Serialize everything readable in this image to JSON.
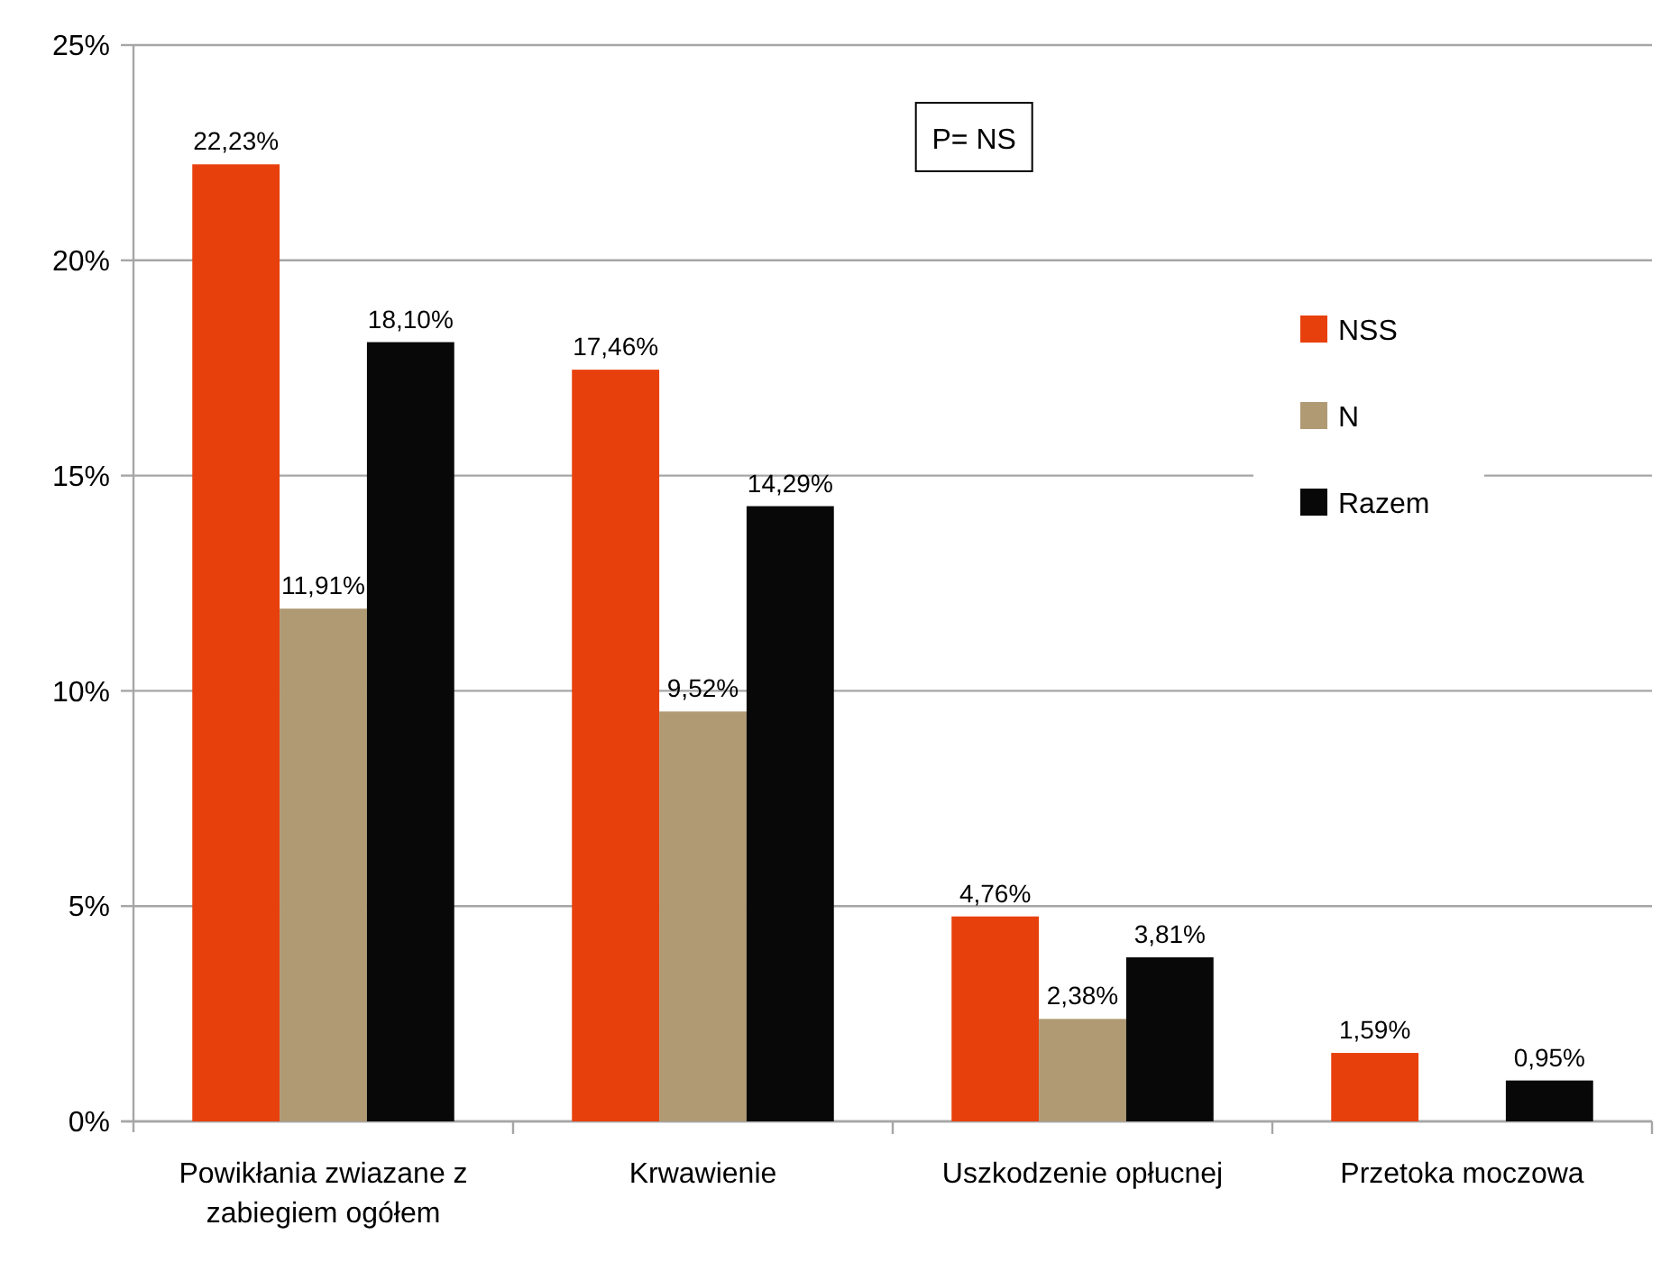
{
  "chart_data": {
    "type": "bar",
    "categories": [
      "Powikłania zwiazane z zabiegiem ogółem",
      "Krwawienie",
      "Uszkodzenie opłucnej",
      "Przetoka moczowa"
    ],
    "series": [
      {
        "name": "NSS",
        "color": "#e8400c",
        "values": [
          22.23,
          17.46,
          4.76,
          1.59
        ],
        "value_labels": [
          "22,23%",
          "17,46%",
          "4,76%",
          "1,59%"
        ]
      },
      {
        "name": "N",
        "color": "#b09a74",
        "values": [
          11.91,
          9.52,
          2.38,
          null
        ],
        "value_labels": [
          "11,91%",
          "9,52%",
          "2,38%",
          null
        ]
      },
      {
        "name": "Razem",
        "color": "#080808",
        "values": [
          18.1,
          14.29,
          3.81,
          0.95
        ],
        "value_labels": [
          "18,10%",
          "14,29%",
          "3,81%",
          "0,95%"
        ]
      }
    ],
    "ylim": [
      0,
      25
    ],
    "yticks": [
      {
        "value": 0,
        "label": "0%"
      },
      {
        "value": 5,
        "label": "5%"
      },
      {
        "value": 10,
        "label": "10%"
      },
      {
        "value": 15,
        "label": "15%"
      },
      {
        "value": 20,
        "label": "20%"
      },
      {
        "value": 25,
        "label": "25%"
      }
    ],
    "grid": "y",
    "legend": "right",
    "annotations": [
      "P= NS"
    ]
  }
}
